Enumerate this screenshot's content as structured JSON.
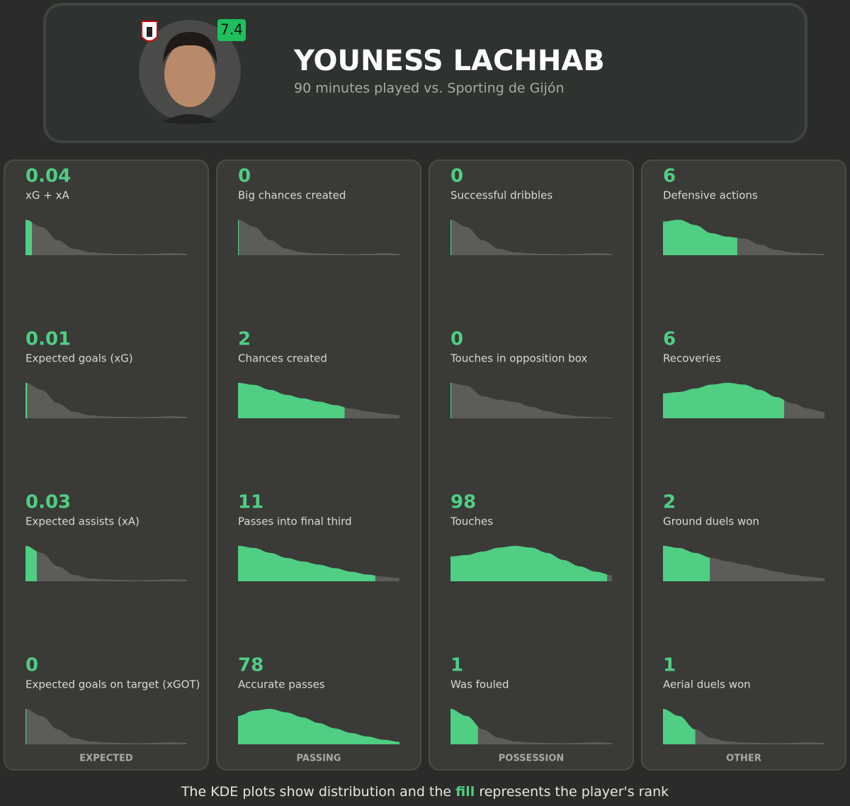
{
  "header": {
    "rating": "7.4",
    "name": "YOUNESS LACHHAB",
    "subtitle": "90 minutes played vs. Sporting de Gijón"
  },
  "columns": [
    {
      "title": "EXPECTED",
      "stats": [
        {
          "value": "0.04",
          "label": "xG + xA",
          "fill": 4
        },
        {
          "value": "0.01",
          "label": "Expected goals (xG)",
          "fill": 1
        },
        {
          "value": "0.03",
          "label": "Expected assists (xA)",
          "fill": 7
        },
        {
          "value": "0",
          "label": "Expected goals on target (xGOT)",
          "fill": 0.5
        }
      ]
    },
    {
      "title": "PASSING",
      "stats": [
        {
          "value": "0",
          "label": "Big chances created",
          "fill": 0.5
        },
        {
          "value": "2",
          "label": "Chances created",
          "fill": 66
        },
        {
          "value": "11",
          "label": "Passes into final third",
          "fill": 85
        },
        {
          "value": "78",
          "label": "Accurate passes",
          "fill": 100
        }
      ]
    },
    {
      "title": "POSSESSION",
      "stats": [
        {
          "value": "0",
          "label": "Successful dribbles",
          "fill": 0.5
        },
        {
          "value": "0",
          "label": "Touches in opposition box",
          "fill": 0.5
        },
        {
          "value": "98",
          "label": "Touches",
          "fill": 97
        },
        {
          "value": "1",
          "label": "Was fouled",
          "fill": 17
        }
      ]
    },
    {
      "title": "OTHER",
      "stats": [
        {
          "value": "6",
          "label": "Defensive actions",
          "fill": 46
        },
        {
          "value": "6",
          "label": "Recoveries",
          "fill": 75
        },
        {
          "value": "2",
          "label": "Ground duels won",
          "fill": 29
        },
        {
          "value": "1",
          "label": "Aerial duels won",
          "fill": 20
        }
      ]
    }
  ],
  "footer": {
    "before": "The KDE plots show distribution and the",
    "highlight": "fill",
    "after": "represents the player's rank"
  }
}
